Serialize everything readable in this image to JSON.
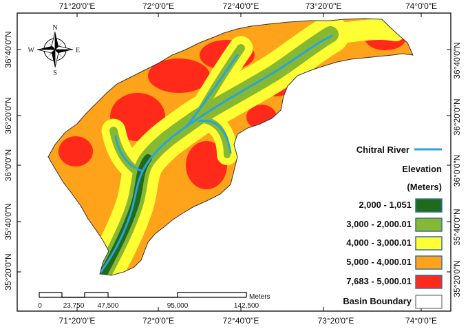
{
  "map": {
    "top_ticks": [
      "71°20'0\"E",
      "72°0'0\"E",
      "72°40'0\"E",
      "73°20'0\"E",
      "74°0'0\"E"
    ],
    "bottom_ticks": [
      "71°20'0\"E",
      "72°0'0\"E",
      "72°40'0\"E",
      "73°20'0\"E",
      "74°0'0\"E"
    ],
    "left_ticks": [
      "36°40'0\"N",
      "36°20'0\"N",
      "36°0'0\"N",
      "35°40'0\"N",
      "35°20'0\"N"
    ],
    "right_ticks": [
      "36°40'0\"N",
      "36°20'0\"N",
      "36°0'0\"N",
      "35°40'0\"N",
      "35°20'0\"N"
    ]
  },
  "compass": {
    "n": "N",
    "s": "S",
    "e": "E",
    "w": "W"
  },
  "legend": {
    "river_label": "Chitral River",
    "river_color": "#29a3de",
    "elevation_title": "Elevation",
    "units": "(Meters)",
    "classes": [
      {
        "label": "2,000 - 1,051",
        "color": "#1f6b1c"
      },
      {
        "label": "3,000 - 2,000.01",
        "color": "#86b832"
      },
      {
        "label": "4,000 - 3,000.01",
        "color": "#ffff33"
      },
      {
        "label": "5,000 - 4,000.01",
        "color": "#ffa31a"
      },
      {
        "label": "7,683 - 5,000.01",
        "color": "#ff2a1a"
      }
    ],
    "boundary_label": "Basin Boundary"
  },
  "scalebar": {
    "labels": [
      "0",
      "23,750",
      "47,500",
      "95,000",
      "142,500"
    ],
    "units": "Meters"
  }
}
